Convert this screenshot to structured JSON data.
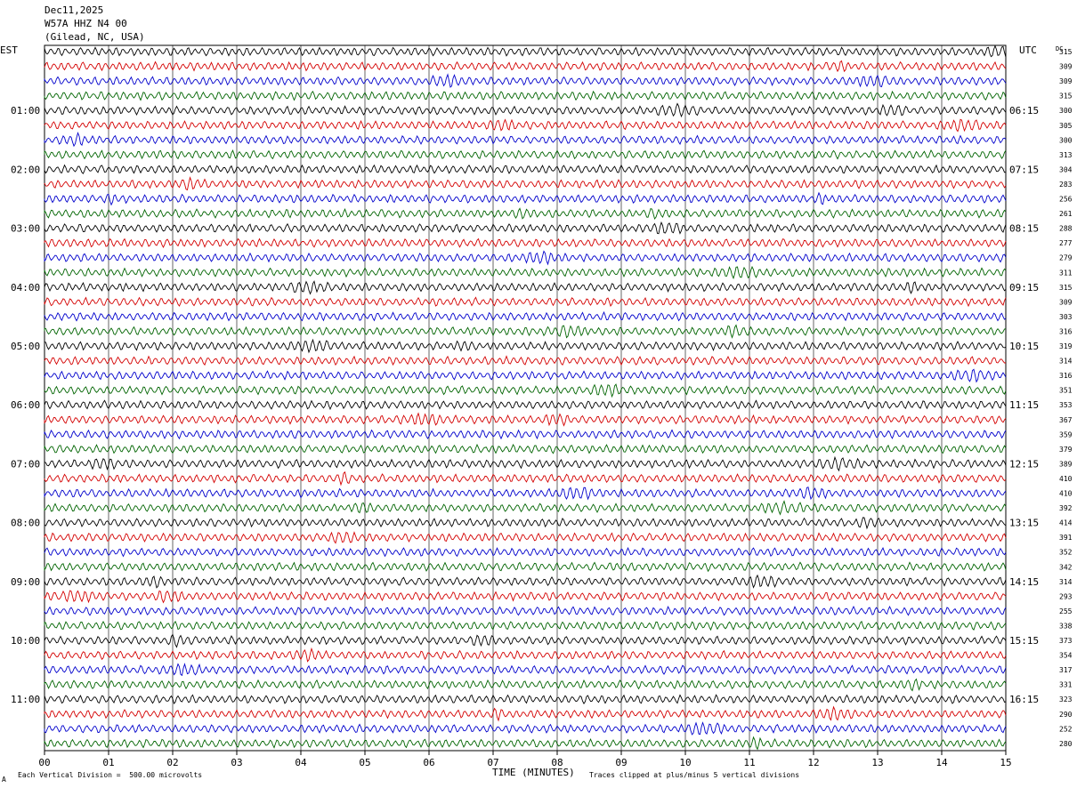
{
  "header": {
    "date": "Dec11,2025",
    "station": "W57A HHZ N4 00",
    "location": "(Gilead, NC, USA)"
  },
  "left_zone": "EST",
  "right_zone": "UTC",
  "dc_label": "DC",
  "footer": {
    "scale": "Each Vertical Division =  500.00 microvolts",
    "clip": "Traces clipped at plus/minus 5 vertical divisions",
    "corner": "A"
  },
  "colors": {
    "trace_cycle": [
      "#000000",
      "#d40000",
      "#0000cc",
      "#006400"
    ],
    "grid": "#000000",
    "background": "#ffffff"
  },
  "chart_data": {
    "type": "line",
    "title": "W57A HHZ N4 00",
    "xlabel": "TIME (MINUTES)",
    "ylabel": "",
    "x_ticks": [
      "00",
      "01",
      "02",
      "03",
      "04",
      "05",
      "06",
      "07",
      "08",
      "09",
      "10",
      "11",
      "12",
      "13",
      "14",
      "15"
    ],
    "xlim": [
      0,
      15
    ],
    "rows": 48,
    "row_minutes": 15,
    "left_hour_labels": [
      "01:00",
      "02:00",
      "03:00",
      "04:00",
      "05:00",
      "06:00",
      "07:00",
      "08:00",
      "09:00",
      "10:00",
      "11:00"
    ],
    "right_hour_labels": [
      "06:15",
      "07:15",
      "08:15",
      "09:15",
      "10:15",
      "11:15",
      "12:15",
      "13:15",
      "14:15",
      "15:15",
      "16:15"
    ],
    "hour_label_rows": [
      4,
      8,
      12,
      16,
      20,
      24,
      28,
      32,
      36,
      40,
      44
    ],
    "dc_values": [
      315,
      309,
      309,
      315,
      300,
      305,
      300,
      313,
      304,
      283,
      256,
      261,
      288,
      277,
      279,
      311,
      315,
      309,
      303,
      316,
      319,
      314,
      316,
      351,
      353,
      367,
      359,
      379,
      389,
      410,
      410,
      392,
      414,
      391,
      352,
      342,
      314,
      293,
      255,
      338,
      373,
      354,
      317,
      331,
      323,
      290,
      252,
      280
    ],
    "scale_microvolts_per_division": 500.0,
    "clip_divisions": 5
  }
}
